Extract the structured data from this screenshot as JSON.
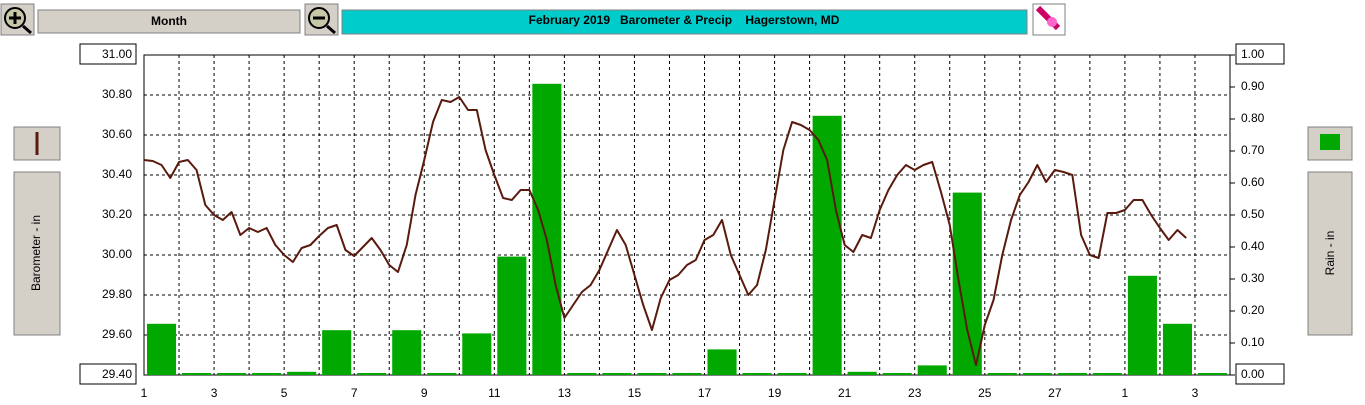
{
  "toolbar": {
    "period": "Month"
  },
  "chart_data": {
    "type": "combo",
    "title": "February 2019   Barometer & Precip    Hagerstown, MD",
    "xlim": [
      0,
      31
    ],
    "xticks": [
      {
        "value": 0,
        "label": "1"
      },
      {
        "value": 2,
        "label": "3"
      },
      {
        "value": 4,
        "label": "5"
      },
      {
        "value": 6,
        "label": "7"
      },
      {
        "value": 8,
        "label": "9"
      },
      {
        "value": 10,
        "label": "11"
      },
      {
        "value": 12,
        "label": "13"
      },
      {
        "value": 14,
        "label": "15"
      },
      {
        "value": 16,
        "label": "17"
      },
      {
        "value": 18,
        "label": "19"
      },
      {
        "value": 20,
        "label": "21"
      },
      {
        "value": 22,
        "label": "23"
      },
      {
        "value": 24,
        "label": "25"
      },
      {
        "value": 26,
        "label": "27"
      },
      {
        "value": 28,
        "label": "1"
      },
      {
        "value": 30,
        "label": "3"
      }
    ],
    "xminor": [
      1,
      3,
      5,
      7,
      9,
      11,
      13,
      15,
      17,
      19,
      21,
      23,
      25,
      27,
      29
    ],
    "ylim": [
      29.4,
      31.0
    ],
    "yticks": [
      {
        "value": 29.4,
        "label": "29.40"
      },
      {
        "value": 29.6,
        "label": "29.60"
      },
      {
        "value": 29.8,
        "label": "29.80"
      },
      {
        "value": 30.0,
        "label": "30.00"
      },
      {
        "value": 30.2,
        "label": "30.20"
      },
      {
        "value": 30.4,
        "label": "30.40"
      },
      {
        "value": 30.6,
        "label": "30.60"
      },
      {
        "value": 30.8,
        "label": "30.80"
      },
      {
        "value": 31.0,
        "label": "31.00"
      }
    ],
    "y2lim": [
      0,
      1.0
    ],
    "y2ticks": [
      {
        "value": 0,
        "label": "0.00"
      },
      {
        "value": 0.1,
        "label": "0.10"
      },
      {
        "value": 0.2,
        "label": "0.20"
      },
      {
        "value": 0.3,
        "label": "0.30"
      },
      {
        "value": 0.4,
        "label": "0.40"
      },
      {
        "value": 0.5,
        "label": "0.50"
      },
      {
        "value": 0.6,
        "label": "0.60"
      },
      {
        "value": 0.7,
        "label": "0.70"
      },
      {
        "value": 0.8,
        "label": "0.80"
      },
      {
        "value": 0.9,
        "label": "0.90"
      },
      {
        "value": 1.0,
        "label": "1.00"
      }
    ],
    "grid": true,
    "series": [
      {
        "name": "Rain - in",
        "type": "bar",
        "axis": "y2",
        "color": "#00a800",
        "x": [
          0,
          1,
          2,
          3,
          4,
          5,
          6,
          7,
          8,
          9,
          10,
          11,
          12,
          13,
          14,
          15,
          16,
          17,
          18,
          19,
          20,
          21,
          22,
          23,
          24,
          25,
          26,
          27,
          28,
          29,
          30
        ],
        "values": [
          0.16,
          0,
          0,
          0,
          0.01,
          0.14,
          0,
          0.14,
          0,
          0.13,
          0.37,
          0.91,
          0,
          0,
          0,
          0,
          0.08,
          0,
          0,
          0.81,
          0.01,
          0,
          0.03,
          0.57,
          0,
          0,
          0,
          0,
          0.31,
          0.16,
          0
        ]
      },
      {
        "name": "Barometer - in",
        "type": "line",
        "color": "#5a1a0e",
        "x": [
          0,
          0.25,
          0.5,
          0.75,
          1,
          1.25,
          1.5,
          1.75,
          2,
          2.25,
          2.5,
          2.75,
          3,
          3.25,
          3.5,
          3.75,
          4,
          4.25,
          4.5,
          4.75,
          5,
          5.25,
          5.5,
          5.75,
          6,
          6.25,
          6.5,
          6.75,
          7,
          7.25,
          7.5,
          7.75,
          8,
          8.25,
          8.5,
          8.75,
          9,
          9.25,
          9.5,
          9.75,
          10,
          10.25,
          10.5,
          10.75,
          11,
          11.25,
          11.5,
          11.75,
          12,
          12.25,
          12.5,
          12.75,
          13,
          13.25,
          13.5,
          13.75,
          14,
          14.25,
          14.5,
          14.75,
          15,
          15.25,
          15.5,
          15.75,
          16,
          16.25,
          16.5,
          16.75,
          17,
          17.25,
          17.5,
          17.75,
          18,
          18.25,
          18.5,
          18.75,
          19,
          19.25,
          19.5,
          19.75,
          20,
          20.25,
          20.5,
          20.75,
          21,
          21.25,
          21.5,
          21.75,
          22,
          22.25,
          22.5,
          22.75,
          23,
          23.25,
          23.5,
          23.75,
          24,
          24.25,
          24.5,
          24.75,
          25,
          25.25,
          25.5,
          25.75,
          26,
          26.25,
          26.5,
          26.75,
          27,
          27.25,
          27.5,
          27.75,
          28,
          28.25,
          28.5,
          28.75,
          29,
          29.25,
          29.5,
          29.75
        ],
        "values": [
          30.475,
          30.47,
          30.45,
          30.385,
          30.465,
          30.475,
          30.425,
          30.25,
          30.2,
          30.175,
          30.215,
          30.1,
          30.135,
          30.115,
          30.135,
          30.05,
          30.0,
          29.965,
          30.035,
          30.05,
          30.095,
          30.135,
          30.15,
          30.025,
          29.995,
          30.04,
          30.085,
          30.025,
          29.95,
          29.915,
          30.05,
          30.3,
          30.475,
          30.665,
          30.775,
          30.765,
          30.79,
          30.725,
          30.725,
          30.525,
          30.4,
          30.285,
          30.275,
          30.325,
          30.325,
          30.225,
          30.075,
          29.85,
          29.685,
          29.75,
          29.815,
          29.85,
          29.925,
          30.025,
          30.125,
          30.05,
          29.9,
          29.75,
          29.625,
          29.785,
          29.875,
          29.9,
          29.95,
          29.975,
          30.075,
          30.1,
          30.175,
          30.0,
          29.9,
          29.8,
          29.85,
          30.025,
          30.275,
          30.525,
          30.665,
          30.65,
          30.625,
          30.575,
          30.475,
          30.225,
          30.05,
          30.015,
          30.1,
          30.085,
          30.225,
          30.325,
          30.4,
          30.45,
          30.425,
          30.45,
          30.465,
          30.315,
          30.15,
          29.875,
          29.625,
          29.45,
          29.65,
          29.775,
          30.0,
          30.175,
          30.3,
          30.365,
          30.45,
          30.365,
          30.425,
          30.415,
          30.4,
          30.1,
          30.0,
          29.985,
          30.21,
          30.21,
          30.225,
          30.275,
          30.275,
          30.2,
          30.135,
          30.075,
          30.125,
          30.085
        ]
      }
    ]
  }
}
